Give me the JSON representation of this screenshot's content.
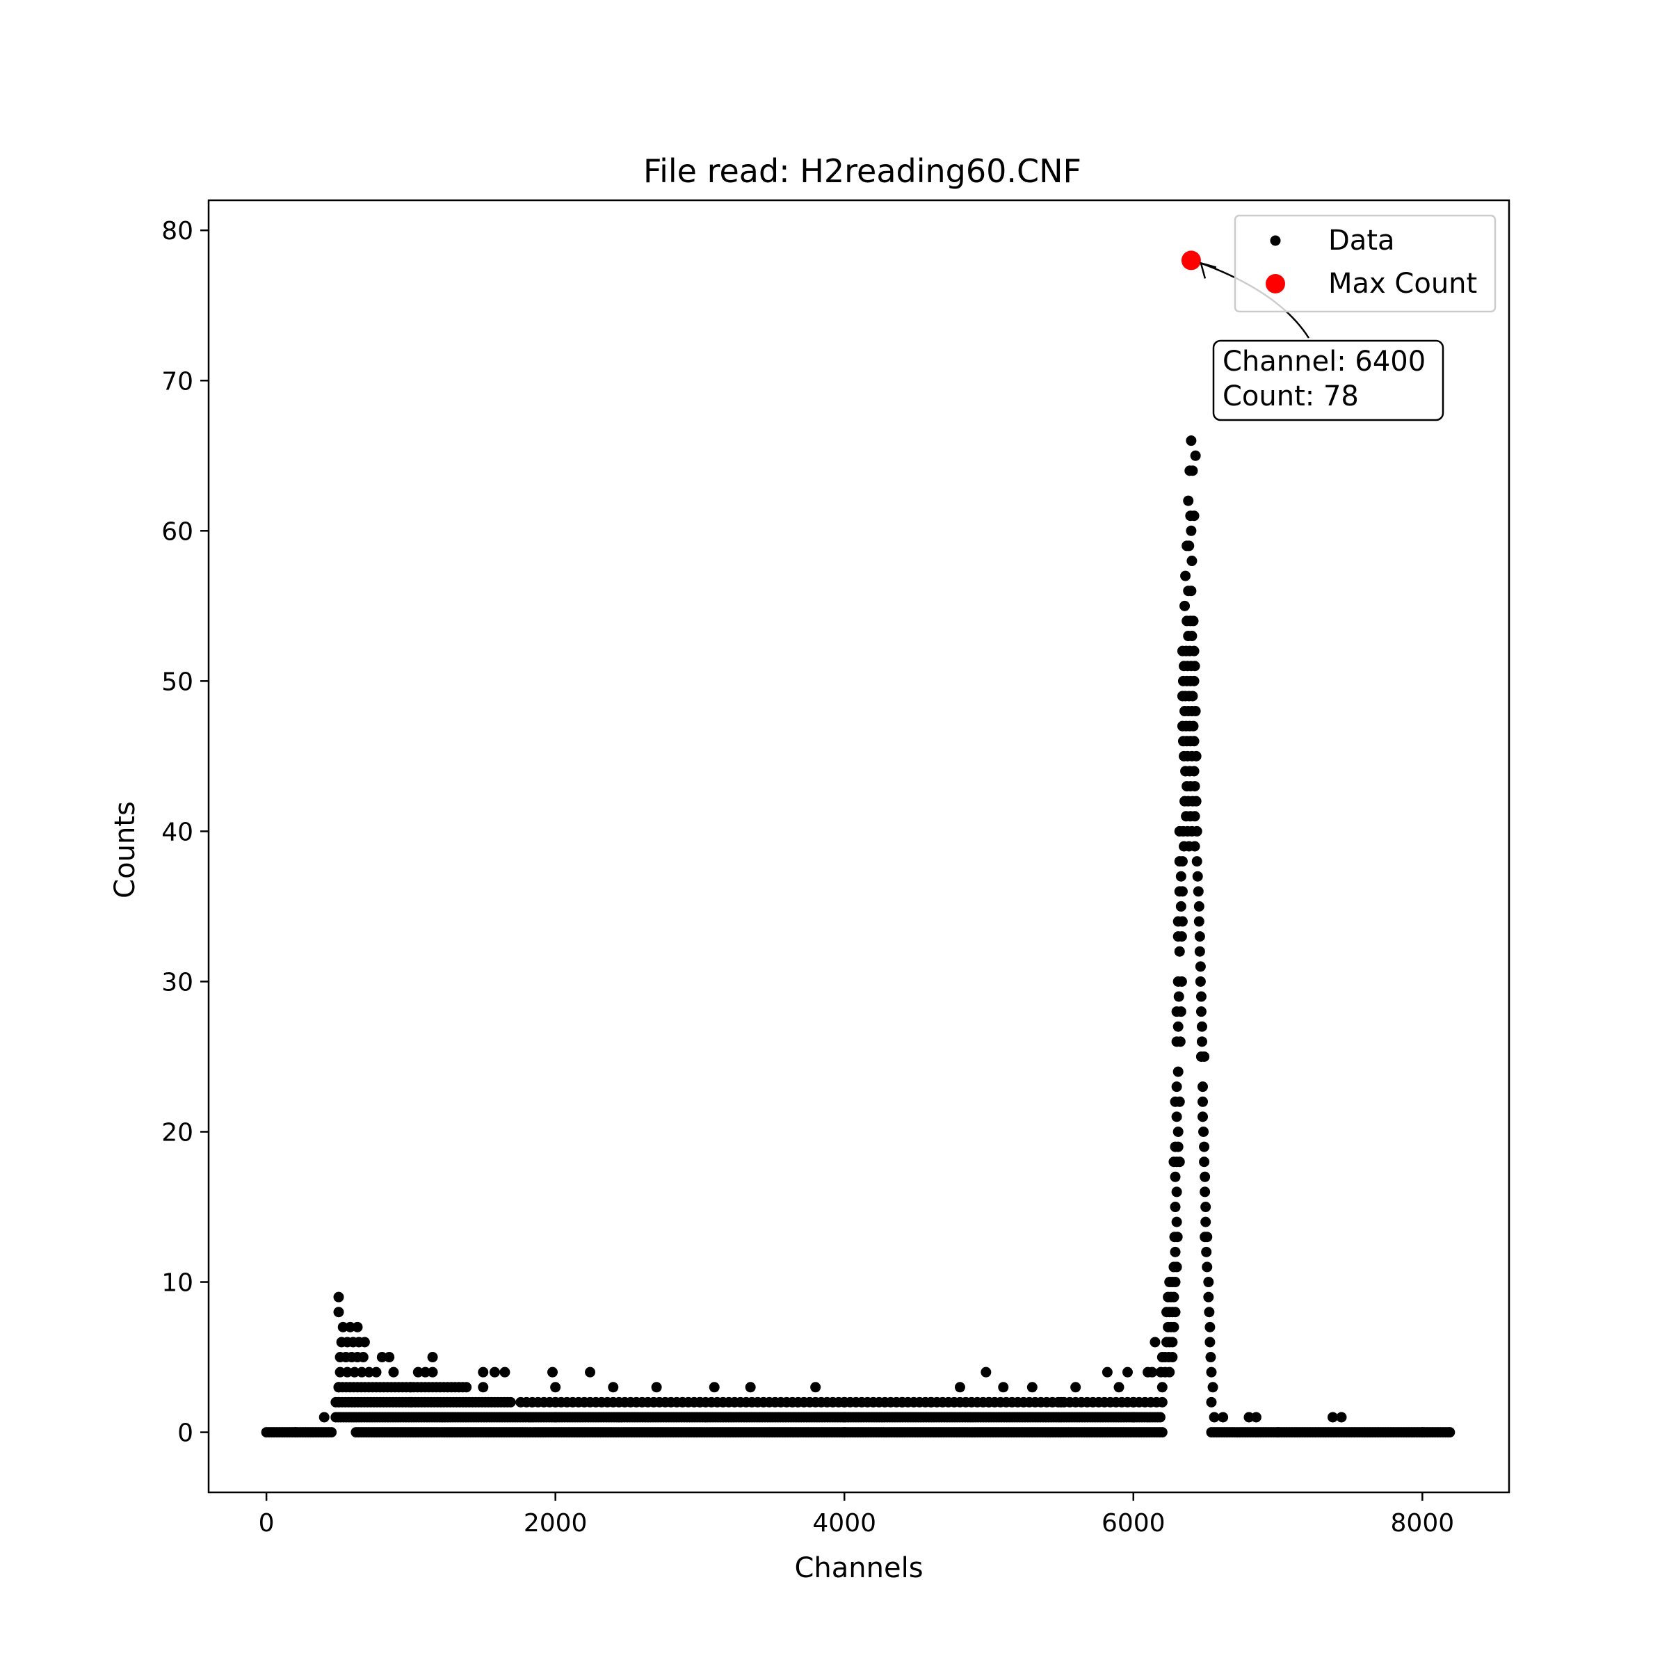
{
  "chart_data": {
    "type": "scatter",
    "title": "File read: H2reading60.CNF",
    "xlabel": "Channels",
    "ylabel": "Counts",
    "xlim": [
      -400,
      8600
    ],
    "ylim": [
      -4,
      82
    ],
    "xticks": [
      0,
      2000,
      4000,
      6000,
      8000
    ],
    "yticks": [
      0,
      10,
      20,
      30,
      40,
      50,
      60,
      70,
      80
    ],
    "grid": false,
    "legend_position": "top-right",
    "series": [
      {
        "name": "Data",
        "color": "#000000",
        "marker": "small-dot",
        "points": [
          [
            6400,
            66
          ],
          [
            6430,
            65
          ],
          [
            6390,
            64
          ],
          [
            6410,
            64
          ],
          [
            6380,
            62
          ],
          [
            6395,
            61
          ],
          [
            6420,
            61
          ],
          [
            6400,
            60
          ],
          [
            6370,
            59
          ],
          [
            6385,
            59
          ],
          [
            6405,
            58
          ],
          [
            6360,
            57
          ],
          [
            6380,
            56
          ],
          [
            6400,
            56
          ],
          [
            6355,
            55
          ],
          [
            6370,
            54
          ],
          [
            6395,
            54
          ],
          [
            6415,
            54
          ],
          [
            6380,
            53
          ],
          [
            6405,
            53
          ],
          [
            6340,
            52
          ],
          [
            6365,
            52
          ],
          [
            6390,
            52
          ],
          [
            6420,
            52
          ],
          [
            6350,
            51
          ],
          [
            6375,
            51
          ],
          [
            6400,
            51
          ],
          [
            6425,
            51
          ],
          [
            6345,
            50
          ],
          [
            6370,
            50
          ],
          [
            6395,
            50
          ],
          [
            6420,
            50
          ],
          [
            6340,
            49
          ],
          [
            6360,
            49
          ],
          [
            6385,
            49
          ],
          [
            6410,
            49
          ],
          [
            6355,
            48
          ],
          [
            6380,
            48
          ],
          [
            6405,
            48
          ],
          [
            6430,
            48
          ],
          [
            6340,
            47
          ],
          [
            6365,
            47
          ],
          [
            6390,
            47
          ],
          [
            6415,
            47
          ],
          [
            6345,
            46
          ],
          [
            6370,
            46
          ],
          [
            6395,
            46
          ],
          [
            6420,
            46
          ],
          [
            6350,
            45
          ],
          [
            6375,
            45
          ],
          [
            6405,
            45
          ],
          [
            6435,
            45
          ],
          [
            6360,
            44
          ],
          [
            6390,
            44
          ],
          [
            6420,
            44
          ],
          [
            6370,
            43
          ],
          [
            6395,
            43
          ],
          [
            6425,
            43
          ],
          [
            6355,
            42
          ],
          [
            6380,
            42
          ],
          [
            6410,
            42
          ],
          [
            6435,
            42
          ],
          [
            6365,
            41
          ],
          [
            6395,
            41
          ],
          [
            6425,
            41
          ],
          [
            6320,
            40
          ],
          [
            6345,
            40
          ],
          [
            6375,
            40
          ],
          [
            6405,
            40
          ],
          [
            6440,
            40
          ],
          [
            6350,
            39
          ],
          [
            6385,
            39
          ],
          [
            6425,
            39
          ],
          [
            6320,
            38
          ],
          [
            6340,
            38
          ],
          [
            6440,
            38
          ],
          [
            6330,
            37
          ],
          [
            6445,
            37
          ],
          [
            6320,
            36
          ],
          [
            6340,
            36
          ],
          [
            6450,
            36
          ],
          [
            6330,
            35
          ],
          [
            6455,
            35
          ],
          [
            6310,
            34
          ],
          [
            6340,
            34
          ],
          [
            6455,
            34
          ],
          [
            6310,
            33
          ],
          [
            6335,
            33
          ],
          [
            6460,
            33
          ],
          [
            6320,
            32
          ],
          [
            6460,
            32
          ],
          [
            6465,
            31
          ],
          [
            6310,
            30
          ],
          [
            6335,
            30
          ],
          [
            6465,
            30
          ],
          [
            6315,
            29
          ],
          [
            6470,
            29
          ],
          [
            6300,
            28
          ],
          [
            6330,
            28
          ],
          [
            6470,
            28
          ],
          [
            6310,
            27
          ],
          [
            6475,
            27
          ],
          [
            6300,
            26
          ],
          [
            6325,
            26
          ],
          [
            6475,
            26
          ],
          [
            6470,
            25
          ],
          [
            6490,
            25
          ],
          [
            6310,
            24
          ],
          [
            6480,
            23
          ],
          [
            6300,
            23
          ],
          [
            6290,
            22
          ],
          [
            6320,
            22
          ],
          [
            6480,
            22
          ],
          [
            6300,
            21
          ],
          [
            6480,
            21
          ],
          [
            6310,
            20
          ],
          [
            6485,
            20
          ],
          [
            6290,
            19
          ],
          [
            6310,
            19
          ],
          [
            6490,
            19
          ],
          [
            6280,
            18
          ],
          [
            6300,
            18
          ],
          [
            6320,
            18
          ],
          [
            6490,
            18
          ],
          [
            6290,
            17
          ],
          [
            6495,
            17
          ],
          [
            6300,
            16
          ],
          [
            6495,
            16
          ],
          [
            6290,
            15
          ],
          [
            6500,
            15
          ],
          [
            6300,
            14
          ],
          [
            6500,
            14
          ],
          [
            6285,
            13
          ],
          [
            6305,
            13
          ],
          [
            6495,
            13
          ],
          [
            6510,
            13
          ],
          [
            6290,
            12
          ],
          [
            6505,
            12
          ],
          [
            6280,
            11
          ],
          [
            6300,
            11
          ],
          [
            6510,
            11
          ],
          [
            6250,
            10
          ],
          [
            6270,
            10
          ],
          [
            6290,
            10
          ],
          [
            6520,
            10
          ],
          [
            6240,
            9
          ],
          [
            6260,
            9
          ],
          [
            6280,
            9
          ],
          [
            6520,
            9
          ],
          [
            6230,
            8
          ],
          [
            6250,
            8
          ],
          [
            6270,
            8
          ],
          [
            6290,
            8
          ],
          [
            6525,
            8
          ],
          [
            6240,
            7
          ],
          [
            6260,
            7
          ],
          [
            6280,
            7
          ],
          [
            6530,
            7
          ],
          [
            6150,
            6
          ],
          [
            6230,
            6
          ],
          [
            6250,
            6
          ],
          [
            6270,
            6
          ],
          [
            6530,
            6
          ],
          [
            6200,
            5
          ],
          [
            6220,
            5
          ],
          [
            6245,
            5
          ],
          [
            6270,
            5
          ],
          [
            6535,
            5
          ],
          [
            5820,
            4
          ],
          [
            5960,
            4
          ],
          [
            6100,
            4
          ],
          [
            6130,
            4
          ],
          [
            6190,
            4
          ],
          [
            6220,
            4
          ],
          [
            6250,
            4
          ],
          [
            6540,
            4
          ],
          [
            4980,
            4
          ],
          [
            2240,
            4
          ],
          [
            1980,
            4
          ],
          [
            1500,
            4
          ],
          [
            1580,
            4
          ],
          [
            1650,
            4
          ],
          [
            1050,
            4
          ],
          [
            1100,
            4
          ],
          [
            1150,
            4
          ],
          [
            880,
            4
          ],
          [
            800,
            5
          ],
          [
            850,
            5
          ],
          [
            1150,
            5
          ],
          [
            500,
            9
          ],
          [
            500,
            8
          ],
          [
            530,
            7
          ],
          [
            580,
            7
          ],
          [
            630,
            7
          ],
          [
            520,
            6
          ],
          [
            560,
            6
          ],
          [
            600,
            6
          ],
          [
            640,
            6
          ],
          [
            680,
            6
          ],
          [
            510,
            5
          ],
          [
            550,
            5
          ],
          [
            590,
            5
          ],
          [
            630,
            5
          ],
          [
            670,
            5
          ],
          [
            510,
            4
          ],
          [
            560,
            4
          ],
          [
            610,
            4
          ],
          [
            660,
            4
          ],
          [
            710,
            4
          ],
          [
            760,
            4
          ],
          [
            500,
            3
          ],
          [
            1000,
            3
          ],
          [
            1500,
            3
          ],
          [
            2000,
            3
          ],
          [
            2400,
            3
          ],
          [
            2700,
            3
          ],
          [
            3100,
            3
          ],
          [
            3350,
            3
          ],
          [
            3800,
            3
          ],
          [
            4800,
            3
          ],
          [
            5100,
            3
          ],
          [
            5300,
            3
          ],
          [
            5600,
            3
          ],
          [
            5900,
            3
          ],
          [
            6200,
            3
          ],
          [
            6550,
            3
          ],
          [
            500,
            2
          ],
          [
            1000,
            2
          ],
          [
            2000,
            2
          ],
          [
            3000,
            2
          ],
          [
            4000,
            2
          ],
          [
            4400,
            2
          ],
          [
            4600,
            2
          ],
          [
            5000,
            2
          ],
          [
            5500,
            2
          ],
          [
            6000,
            2
          ],
          [
            6540,
            2
          ],
          [
            6560,
            1
          ],
          [
            6620,
            1
          ],
          [
            6800,
            1
          ],
          [
            6850,
            1
          ],
          [
            7380,
            1
          ],
          [
            7440,
            1
          ],
          [
            400,
            1
          ],
          [
            2000,
            1
          ],
          [
            4000,
            1
          ],
          [
            6000,
            1
          ],
          [
            200,
            0
          ],
          [
            4000,
            0
          ],
          [
            7000,
            0
          ],
          [
            8000,
            0
          ],
          [
            8190,
            0
          ]
        ]
      },
      {
        "name": "Max Count",
        "color": "#ff0000",
        "marker": "large-dot",
        "points": [
          [
            6400,
            78
          ]
        ]
      }
    ],
    "annotation": {
      "line1": "Channel: 6400",
      "line2": "Count: 78",
      "target": [
        6400,
        78
      ]
    }
  }
}
